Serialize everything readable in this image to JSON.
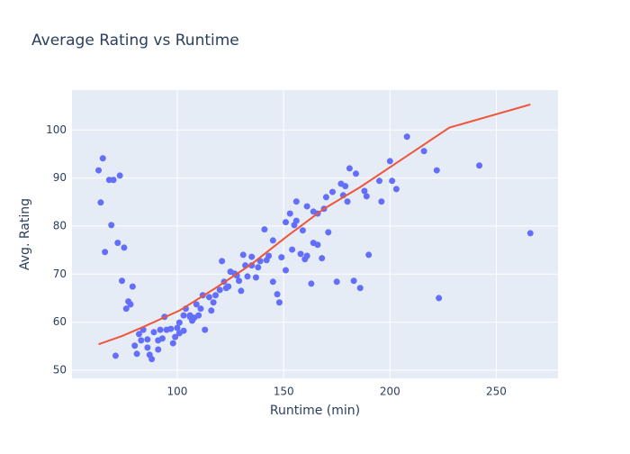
{
  "chart_data": {
    "type": "scatter",
    "title": "Average Rating vs Runtime",
    "x_label": "Runtime (min)",
    "y_label": "Avg. Rating",
    "xlim": [
      50.5,
      279
    ],
    "ylim": [
      48.3,
      108.3
    ],
    "xticks": [
      100,
      150,
      200,
      250
    ],
    "yticks": [
      50,
      60,
      70,
      80,
      90,
      100
    ],
    "grid": true,
    "series": [
      {
        "mode": "markers",
        "color": "#636efa",
        "x": [
          63,
          65,
          64,
          66,
          68,
          70,
          69,
          73,
          72,
          75,
          74,
          71,
          76,
          77,
          78,
          79,
          80,
          81,
          82,
          83,
          84,
          86,
          86,
          87,
          88,
          89,
          91,
          91,
          92,
          93,
          94,
          95,
          97,
          98,
          99,
          100,
          101,
          101,
          103,
          103,
          104,
          106,
          106,
          107,
          108,
          109,
          110,
          111,
          112,
          113,
          115,
          116,
          117,
          118,
          120,
          121,
          122,
          123,
          124,
          125,
          127,
          128,
          129,
          130,
          131,
          132,
          133,
          135,
          135,
          137,
          138,
          139,
          141,
          142,
          143,
          145,
          145,
          147,
          148,
          149,
          151,
          151,
          153,
          154,
          155,
          156,
          156,
          158,
          159,
          160,
          161,
          161,
          163,
          164,
          164,
          166,
          166,
          168,
          169,
          170,
          171,
          173,
          175,
          177,
          178,
          179,
          180,
          181,
          183,
          184,
          186,
          188,
          189,
          190,
          195,
          196,
          200,
          201,
          203,
          208,
          216,
          222,
          223,
          242,
          266
        ],
        "y": [
          91.6,
          94.1,
          84.9,
          74.6,
          89.6,
          89.6,
          80.2,
          90.5,
          76.5,
          75.5,
          68.6,
          53.0,
          62.8,
          64.3,
          63.7,
          67.4,
          55.1,
          53.4,
          57.5,
          56.2,
          58.4,
          54.7,
          56.4,
          53.2,
          52.3,
          57.9,
          54.3,
          56.2,
          58.4,
          56.6,
          61.1,
          58.4,
          58.6,
          55.6,
          56.9,
          58.8,
          57.7,
          59.9,
          61.4,
          58.2,
          62.8,
          61.4,
          61.1,
          60.3,
          60.9,
          63.7,
          61.4,
          62.8,
          65.6,
          58.4,
          65.2,
          62.4,
          64.1,
          65.6,
          66.7,
          72.7,
          68.4,
          67.1,
          67.4,
          70.5,
          70.1,
          69.7,
          68.6,
          66.5,
          74.0,
          71.8,
          69.5,
          71.8,
          73.6,
          69.3,
          71.4,
          72.7,
          79.3,
          72.9,
          73.8,
          68.4,
          77.0,
          65.8,
          64.1,
          73.5,
          70.8,
          80.8,
          82.6,
          75.1,
          80.2,
          81.1,
          85.1,
          74.2,
          79.1,
          73.1,
          84.1,
          73.8,
          68.0,
          83.0,
          76.5,
          82.6,
          76.1,
          73.3,
          83.6,
          86.0,
          78.7,
          87.1,
          68.4,
          88.8,
          86.4,
          88.3,
          85.1,
          92.0,
          68.6,
          90.9,
          67.1,
          87.3,
          86.2,
          74.0,
          89.4,
          85.1,
          93.5,
          89.4,
          87.7,
          98.6,
          95.6,
          91.6,
          65.0,
          92.6,
          78.5
        ]
      },
      {
        "mode": "lines",
        "color": "#ef553b",
        "x": [
          63,
          74,
          84,
          101,
          118,
          135,
          152,
          169,
          186,
          207,
          228,
          266
        ],
        "y": [
          55.4,
          57.1,
          59.0,
          62.4,
          67.1,
          72.1,
          78.0,
          83.6,
          88.1,
          94.3,
          100.5,
          105.3
        ]
      }
    ]
  }
}
